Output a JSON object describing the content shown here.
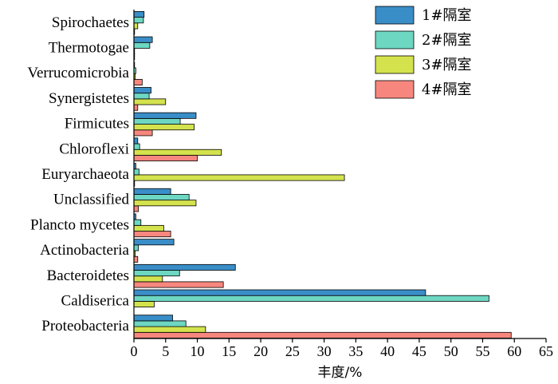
{
  "chart_data": {
    "type": "bar",
    "orientation": "horizontal",
    "xlabel": "丰度/%",
    "xlim": [
      0,
      65
    ],
    "xticks": [
      "0",
      "5",
      "10",
      "15",
      "20",
      "25",
      "30",
      "35",
      "40",
      "45",
      "50",
      "55",
      "60",
      "65"
    ],
    "grid": false,
    "legend_position": "top-right",
    "categories": [
      "Proteobacteria",
      "Caldiserica",
      "Bacteroidetes",
      "Actinobacteria",
      "Plancto mycetes",
      "Unclassified",
      "Euryarchaeota",
      "Chloroflexi",
      "Firmicutes",
      "Synergistetes",
      "Verrucomicrobia",
      "Thermotogae",
      "Spirochaetes"
    ],
    "series": [
      {
        "name": "1#隔室",
        "color": "#3a8ec8",
        "values": [
          6.1,
          46.0,
          16.0,
          6.3,
          0.3,
          5.8,
          0.3,
          0.6,
          9.8,
          2.7,
          0.1,
          2.9,
          1.6
        ]
      },
      {
        "name": "2#隔室",
        "color": "#6dd7c2",
        "values": [
          8.2,
          56.0,
          7.2,
          0.7,
          1.1,
          8.7,
          0.8,
          0.9,
          7.3,
          2.4,
          0.3,
          2.5,
          1.5
        ]
      },
      {
        "name": "3#隔室",
        "color": "#d4e34d",
        "values": [
          11.3,
          3.2,
          4.5,
          0.2,
          4.7,
          9.8,
          33.2,
          13.8,
          9.5,
          5.0,
          0.2,
          0.1,
          0.6
        ]
      },
      {
        "name": "4#隔室",
        "color": "#f7877e",
        "values": [
          59.5,
          0.0,
          14.1,
          0.6,
          5.8,
          0.7,
          0.1,
          10.0,
          2.9,
          0.6,
          1.3,
          0.1,
          0.1
        ]
      }
    ]
  }
}
